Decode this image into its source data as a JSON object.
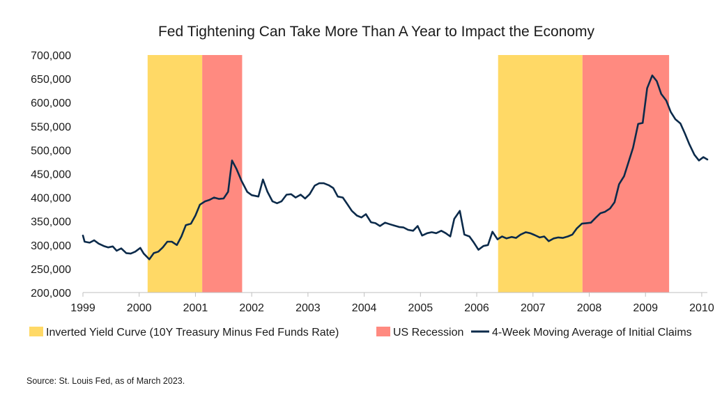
{
  "chart_data": {
    "type": "line",
    "title": "Fed Tightening Can Take More Than A Year to Impact the  Economy",
    "xlabel": "",
    "ylabel": "",
    "xlim": [
      1999.0,
      2010.1
    ],
    "ylim": [
      200000,
      700000
    ],
    "y_ticks": [
      200000,
      250000,
      300000,
      350000,
      400000,
      450000,
      500000,
      550000,
      600000,
      650000,
      700000
    ],
    "y_tick_labels": [
      "200,000",
      "250,000",
      "300,000",
      "350,000",
      "400,000",
      "450,000",
      "500,000",
      "550,000",
      "600,000",
      "650,000",
      "700,000"
    ],
    "x_ticks": [
      1999,
      2000,
      2001,
      2002,
      2003,
      2004,
      2005,
      2006,
      2007,
      2008,
      2009,
      2010
    ],
    "x_tick_labels": [
      "1999",
      "2000",
      "2001",
      "2002",
      "2003",
      "2004",
      "2005",
      "2006",
      "2007",
      "2008",
      "2009",
      "2010"
    ],
    "grid": false,
    "legend_position": "bottom",
    "shaded_regions": [
      {
        "name": "Inverted Yield Curve (10Y Treasury Minus Fed Funds Rate)",
        "color": "#FFD966",
        "start": 2000.15,
        "end": 2001.12
      },
      {
        "name": "US Recession",
        "color": "#FF8A80",
        "start": 2001.12,
        "end": 2001.83
      },
      {
        "name": "Inverted Yield Curve (10Y Treasury Minus Fed Funds Rate)",
        "color": "#FFD966",
        "start": 2006.38,
        "end": 2007.88
      },
      {
        "name": "US Recession",
        "color": "#FF8A80",
        "start": 2007.88,
        "end": 2009.42
      }
    ],
    "legend": [
      {
        "label": "Inverted Yield Curve (10Y Treasury Minus Fed Funds Rate)",
        "kind": "box",
        "color": "#FFD966"
      },
      {
        "label": "US Recession",
        "kind": "box",
        "color": "#FF8A80"
      },
      {
        "label": "4-Week Moving Average of Initial Claims",
        "kind": "line",
        "color": "#0B2A4A"
      }
    ],
    "series": [
      {
        "name": "4-Week Moving Average of Initial Claims",
        "color": "#0B2A4A",
        "points": [
          [
            1999.0,
            320000
          ],
          [
            1999.03,
            307000
          ],
          [
            1999.12,
            305000
          ],
          [
            1999.2,
            310000
          ],
          [
            1999.28,
            303000
          ],
          [
            1999.37,
            298000
          ],
          [
            1999.45,
            295000
          ],
          [
            1999.53,
            297000
          ],
          [
            1999.6,
            288000
          ],
          [
            1999.68,
            293000
          ],
          [
            1999.77,
            283000
          ],
          [
            1999.85,
            282000
          ],
          [
            1999.93,
            286000
          ],
          [
            2000.02,
            294000
          ],
          [
            2000.08,
            282000
          ],
          [
            2000.18,
            270000
          ],
          [
            2000.26,
            283000
          ],
          [
            2000.34,
            286000
          ],
          [
            2000.42,
            295000
          ],
          [
            2000.5,
            307000
          ],
          [
            2000.58,
            307000
          ],
          [
            2000.67,
            300000
          ],
          [
            2000.75,
            318000
          ],
          [
            2000.83,
            342000
          ],
          [
            2000.92,
            345000
          ],
          [
            2001.0,
            362000
          ],
          [
            2001.08,
            385000
          ],
          [
            2001.17,
            392000
          ],
          [
            2001.25,
            395000
          ],
          [
            2001.33,
            400000
          ],
          [
            2001.42,
            397000
          ],
          [
            2001.5,
            398000
          ],
          [
            2001.58,
            412000
          ],
          [
            2001.65,
            478000
          ],
          [
            2001.73,
            460000
          ],
          [
            2001.82,
            435000
          ],
          [
            2001.92,
            412000
          ],
          [
            2002.0,
            405000
          ],
          [
            2002.12,
            402000
          ],
          [
            2002.2,
            438000
          ],
          [
            2002.28,
            412000
          ],
          [
            2002.37,
            392000
          ],
          [
            2002.45,
            388000
          ],
          [
            2002.53,
            392000
          ],
          [
            2002.62,
            406000
          ],
          [
            2002.7,
            407000
          ],
          [
            2002.78,
            400000
          ],
          [
            2002.87,
            406000
          ],
          [
            2002.95,
            398000
          ],
          [
            2003.03,
            407000
          ],
          [
            2003.12,
            425000
          ],
          [
            2003.2,
            430000
          ],
          [
            2003.28,
            430000
          ],
          [
            2003.37,
            426000
          ],
          [
            2003.45,
            420000
          ],
          [
            2003.53,
            402000
          ],
          [
            2003.62,
            400000
          ],
          [
            2003.7,
            386000
          ],
          [
            2003.78,
            372000
          ],
          [
            2003.87,
            362000
          ],
          [
            2003.95,
            358000
          ],
          [
            2004.03,
            365000
          ],
          [
            2004.12,
            348000
          ],
          [
            2004.2,
            346000
          ],
          [
            2004.28,
            340000
          ],
          [
            2004.37,
            347000
          ],
          [
            2004.45,
            344000
          ],
          [
            2004.53,
            341000
          ],
          [
            2004.62,
            338000
          ],
          [
            2004.7,
            337000
          ],
          [
            2004.78,
            332000
          ],
          [
            2004.87,
            330000
          ],
          [
            2004.95,
            340000
          ],
          [
            2005.03,
            320000
          ],
          [
            2005.12,
            325000
          ],
          [
            2005.2,
            327000
          ],
          [
            2005.28,
            325000
          ],
          [
            2005.37,
            330000
          ],
          [
            2005.45,
            325000
          ],
          [
            2005.53,
            318000
          ],
          [
            2005.6,
            355000
          ],
          [
            2005.7,
            372000
          ],
          [
            2005.78,
            322000
          ],
          [
            2005.87,
            318000
          ],
          [
            2005.95,
            305000
          ],
          [
            2006.03,
            290000
          ],
          [
            2006.12,
            298000
          ],
          [
            2006.2,
            300000
          ],
          [
            2006.28,
            328000
          ],
          [
            2006.37,
            312000
          ],
          [
            2006.45,
            318000
          ],
          [
            2006.53,
            314000
          ],
          [
            2006.62,
            317000
          ],
          [
            2006.7,
            315000
          ],
          [
            2006.78,
            322000
          ],
          [
            2006.87,
            327000
          ],
          [
            2006.95,
            325000
          ],
          [
            2007.03,
            321000
          ],
          [
            2007.12,
            316000
          ],
          [
            2007.2,
            318000
          ],
          [
            2007.28,
            308000
          ],
          [
            2007.37,
            314000
          ],
          [
            2007.45,
            316000
          ],
          [
            2007.53,
            315000
          ],
          [
            2007.62,
            318000
          ],
          [
            2007.7,
            322000
          ],
          [
            2007.78,
            335000
          ],
          [
            2007.87,
            345000
          ],
          [
            2007.95,
            346000
          ],
          [
            2008.03,
            347000
          ],
          [
            2008.12,
            358000
          ],
          [
            2008.2,
            367000
          ],
          [
            2008.28,
            370000
          ],
          [
            2008.37,
            377000
          ],
          [
            2008.45,
            390000
          ],
          [
            2008.53,
            428000
          ],
          [
            2008.62,
            445000
          ],
          [
            2008.7,
            475000
          ],
          [
            2008.78,
            505000
          ],
          [
            2008.87,
            555000
          ],
          [
            2008.95,
            557000
          ],
          [
            2009.03,
            630000
          ],
          [
            2009.12,
            657000
          ],
          [
            2009.2,
            645000
          ],
          [
            2009.28,
            618000
          ],
          [
            2009.37,
            604000
          ],
          [
            2009.45,
            580000
          ],
          [
            2009.53,
            565000
          ],
          [
            2009.62,
            556000
          ],
          [
            2009.7,
            535000
          ],
          [
            2009.78,
            512000
          ],
          [
            2009.87,
            490000
          ],
          [
            2009.95,
            478000
          ],
          [
            2010.03,
            485000
          ],
          [
            2010.1,
            480000
          ]
        ]
      }
    ]
  },
  "footer": {
    "source": "Source: St. Louis Fed, as of March 2023."
  }
}
